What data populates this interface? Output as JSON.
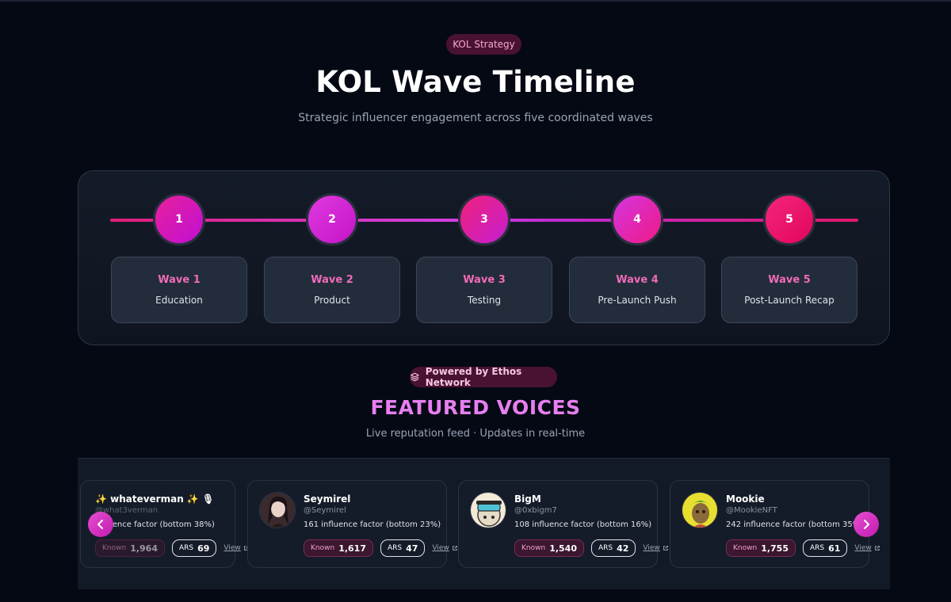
{
  "header": {
    "badge": "KOL Strategy",
    "title": "KOL Wave Timeline",
    "subtitle": "Strategic influencer engagement across five coordinated waves"
  },
  "timeline": {
    "waves": [
      {
        "number": "1",
        "label": "Wave 1",
        "name": "Education",
        "color_from": "#e8219a",
        "color_to": "#c00fd6"
      },
      {
        "number": "2",
        "label": "Wave 2",
        "name": "Product",
        "color_from": "#e03ae0",
        "color_to": "#c414c6"
      },
      {
        "number": "3",
        "label": "Wave 3",
        "name": "Testing",
        "color_from": "#f0207a",
        "color_to": "#c51fd1"
      },
      {
        "number": "4",
        "label": "Wave 4",
        "name": "Pre-Launch Push",
        "color_from": "#d535e0",
        "color_to": "#ee1a86"
      },
      {
        "number": "5",
        "label": "Wave 5",
        "name": "Post-Launch Recap",
        "color_from": "#f3267d",
        "color_to": "#e3055c"
      }
    ]
  },
  "powered_by": {
    "icon": "layers-icon",
    "label": "Powered by Ethos Network"
  },
  "featured": {
    "title": "FEATURED VOICES",
    "subtitle": "Live reputation feed · Updates in real-time"
  },
  "voices": [
    {
      "name": "✨ whateverman ✨ 🎙",
      "handle": "@what3verman",
      "influence": "influence factor (bottom 38%)",
      "known_label": "Known",
      "known": "1,964",
      "ars_label": "ARS",
      "ars": "69",
      "view": "View"
    },
    {
      "name": "Seymirel",
      "handle": "@Seymirel",
      "influence": "161 influence factor (bottom 23%)",
      "known_label": "Known",
      "known": "1,617",
      "ars_label": "ARS",
      "ars": "47",
      "view": "View"
    },
    {
      "name": "BigM",
      "handle": "@0xbigm7",
      "influence": "108 influence factor (bottom 16%)",
      "known_label": "Known",
      "known": "1,540",
      "ars_label": "ARS",
      "ars": "42",
      "view": "View"
    },
    {
      "name": "Mookie",
      "handle": "@MookieNFT",
      "influence": "242 influence factor (bottom 35%)",
      "known_label": "Known",
      "known": "1,755",
      "ars_label": "ARS",
      "ars": "61",
      "view": "View"
    }
  ],
  "carousel": {
    "prev_icon": "chevron-left-icon",
    "next_icon": "chevron-right-icon"
  },
  "colors": {
    "accent_pink": "#f06bb8",
    "featured_title": "#e77ff0",
    "background": "#050914"
  }
}
